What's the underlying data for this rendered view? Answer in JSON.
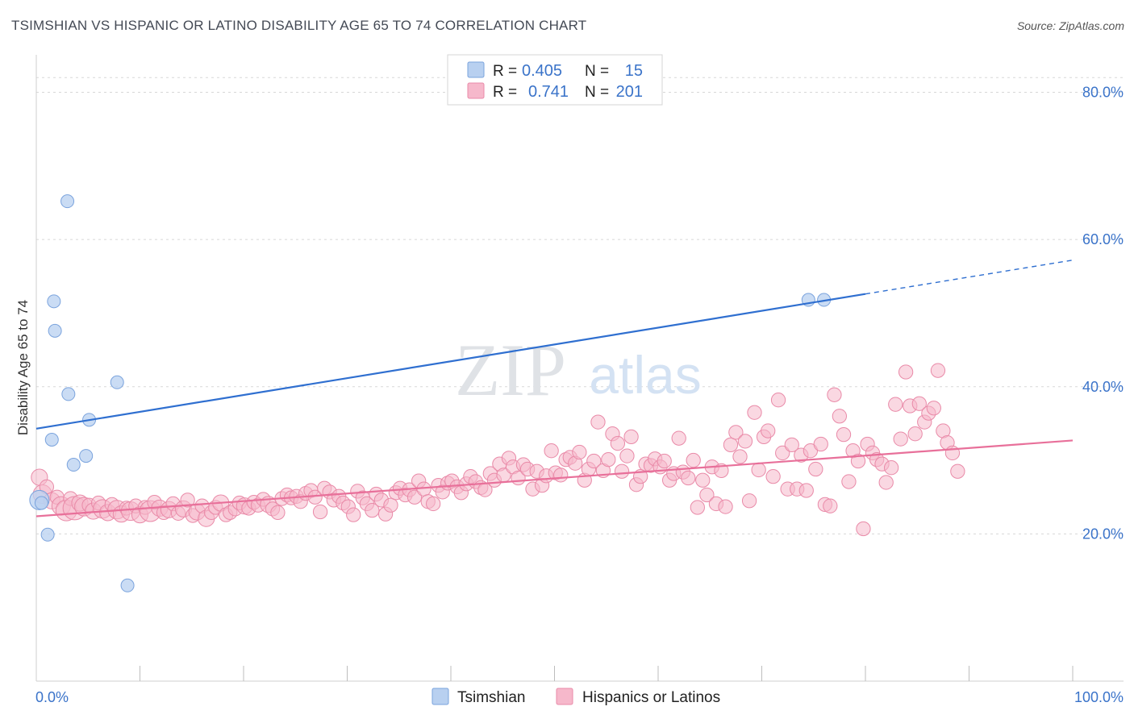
{
  "title": "TSIMSHIAN VS HISPANIC OR LATINO DISABILITY AGE 65 TO 74 CORRELATION CHART",
  "source": "Source: ZipAtlas.com",
  "watermark": {
    "zip": "ZIP",
    "atlas": "atlas"
  },
  "colors": {
    "blue_fill": "#b8d0f0",
    "blue_stroke": "#7aa3dd",
    "blue_line": "#2f6fd0",
    "pink_fill": "#f6b8cb",
    "pink_stroke": "#e98aa8",
    "pink_line": "#e8709a",
    "tick_text": "#3a73c9",
    "grid": "#d8d8d8"
  },
  "legend": {
    "rows": [
      {
        "r_label": "R =",
        "r_value": "0.405",
        "n_label": "N =",
        "n_value": "15"
      },
      {
        "r_label": "R =",
        "r_value": "0.741",
        "n_label": "N =",
        "n_value": "201"
      }
    ]
  },
  "bottom_legend": [
    "Tsimshian",
    "Hispanics or Latinos"
  ],
  "chart_data": {
    "type": "scatter",
    "title": "TSIMSHIAN VS HISPANIC OR LATINO DISABILITY AGE 65 TO 74 CORRELATION CHART",
    "ylabel": "Disability Age 65 to 74",
    "xlabel": "",
    "x_tick_labels": [
      "0.0%",
      "100.0%"
    ],
    "y_tick_labels": [
      "20.0%",
      "40.0%",
      "60.0%",
      "80.0%"
    ],
    "xlim": [
      0,
      100
    ],
    "ylim": [
      0,
      84
    ],
    "grid": true,
    "legend_position": "top-center",
    "series": [
      {
        "name": "Tsimshian",
        "R": 0.405,
        "N": 15,
        "trend": {
          "x0": 0,
          "y0": 34.3,
          "x1": 80,
          "y1": 52.6,
          "dashed_to_x": 100,
          "dashed_to_y": 57.2
        },
        "points": [
          [
            0.3,
            24.6,
            12
          ],
          [
            0.5,
            24.2,
            8
          ],
          [
            1.1,
            19.9,
            8
          ],
          [
            3.0,
            65.2,
            8
          ],
          [
            1.7,
            51.6,
            8
          ],
          [
            1.8,
            47.6,
            8
          ],
          [
            3.1,
            39.0,
            8
          ],
          [
            1.5,
            32.8,
            8
          ],
          [
            5.1,
            35.5,
            8
          ],
          [
            3.6,
            29.4,
            8
          ],
          [
            4.8,
            30.6,
            8
          ],
          [
            7.8,
            40.6,
            8
          ],
          [
            8.8,
            13.0,
            8
          ],
          [
            74.5,
            51.8,
            8
          ],
          [
            76.0,
            51.8,
            8
          ]
        ]
      },
      {
        "name": "Hispanics or Latinos",
        "R": 0.741,
        "N": 201,
        "trend": {
          "x0": 0,
          "y0": 22.4,
          "x1": 100,
          "y1": 32.7
        },
        "points": [
          [
            0.3,
            27.7,
            14
          ],
          [
            0.6,
            25.4,
            16
          ],
          [
            1.0,
            26.4,
            12
          ],
          [
            1.5,
            24.5,
            14
          ],
          [
            2.0,
            25.0,
            12
          ],
          [
            2.4,
            23.8,
            16
          ],
          [
            2.9,
            23.2,
            18
          ],
          [
            3.3,
            24.8,
            12
          ],
          [
            3.7,
            23.5,
            20
          ],
          [
            4.2,
            24.2,
            14
          ],
          [
            4.6,
            23.7,
            16
          ],
          [
            5.1,
            23.9,
            12
          ],
          [
            5.5,
            23.1,
            14
          ],
          [
            6.0,
            24.2,
            12
          ],
          [
            6.4,
            23.4,
            16
          ],
          [
            6.9,
            22.9,
            14
          ],
          [
            7.3,
            24.0,
            12
          ],
          [
            7.8,
            23.3,
            16
          ],
          [
            8.2,
            22.7,
            14
          ],
          [
            8.7,
            23.5,
            12
          ],
          [
            9.1,
            23.1,
            16
          ],
          [
            9.6,
            23.8,
            12
          ],
          [
            10.0,
            22.6,
            14
          ],
          [
            10.5,
            23.6,
            12
          ],
          [
            11.0,
            23.1,
            18
          ],
          [
            11.4,
            24.3,
            12
          ],
          [
            11.9,
            23.5,
            14
          ],
          [
            12.3,
            22.9,
            12
          ],
          [
            12.8,
            23.3,
            14
          ],
          [
            13.2,
            24.1,
            12
          ],
          [
            13.7,
            22.8,
            12
          ],
          [
            14.2,
            23.4,
            14
          ],
          [
            14.6,
            24.6,
            12
          ],
          [
            15.1,
            22.5,
            12
          ],
          [
            15.5,
            23.0,
            14
          ],
          [
            16.0,
            23.8,
            12
          ],
          [
            16.4,
            22.1,
            14
          ],
          [
            16.9,
            22.9,
            12
          ],
          [
            17.3,
            23.6,
            12
          ],
          [
            17.8,
            24.2,
            14
          ],
          [
            18.3,
            22.6,
            12
          ],
          [
            18.7,
            22.9,
            12
          ],
          [
            19.2,
            23.4,
            12
          ],
          [
            19.6,
            24.2,
            12
          ],
          [
            20.1,
            23.8,
            14
          ],
          [
            20.5,
            23.5,
            12
          ],
          [
            21.0,
            24.3,
            12
          ],
          [
            21.4,
            23.9,
            12
          ],
          [
            21.9,
            24.7,
            12
          ],
          [
            22.4,
            24.0,
            14
          ],
          [
            22.8,
            23.4,
            12
          ],
          [
            23.3,
            22.9,
            12
          ],
          [
            23.7,
            24.8,
            12
          ],
          [
            24.2,
            25.3,
            12
          ],
          [
            24.6,
            24.9,
            12
          ],
          [
            25.1,
            25.1,
            12
          ],
          [
            25.5,
            24.4,
            12
          ],
          [
            26.0,
            25.5,
            12
          ],
          [
            26.5,
            25.9,
            12
          ],
          [
            26.9,
            25.0,
            12
          ],
          [
            27.4,
            23.0,
            12
          ],
          [
            27.8,
            26.2,
            12
          ],
          [
            28.3,
            25.7,
            12
          ],
          [
            28.7,
            24.6,
            12
          ],
          [
            29.2,
            25.1,
            12
          ],
          [
            29.6,
            24.2,
            12
          ],
          [
            30.1,
            23.7,
            12
          ],
          [
            30.6,
            22.6,
            12
          ],
          [
            31.0,
            25.8,
            12
          ],
          [
            31.5,
            24.9,
            12
          ],
          [
            31.9,
            24.1,
            12
          ],
          [
            32.4,
            23.2,
            12
          ],
          [
            32.8,
            25.4,
            12
          ],
          [
            33.3,
            24.6,
            12
          ],
          [
            33.7,
            22.7,
            12
          ],
          [
            34.2,
            23.9,
            12
          ],
          [
            34.7,
            25.6,
            12
          ],
          [
            35.1,
            26.2,
            12
          ],
          [
            35.6,
            25.3,
            12
          ],
          [
            36.0,
            26.0,
            12
          ],
          [
            36.5,
            25.0,
            12
          ],
          [
            36.9,
            27.2,
            12
          ],
          [
            37.4,
            26.1,
            12
          ],
          [
            37.8,
            24.4,
            12
          ],
          [
            38.3,
            24.1,
            12
          ],
          [
            38.8,
            26.6,
            12
          ],
          [
            39.2,
            25.7,
            12
          ],
          [
            39.7,
            26.9,
            12
          ],
          [
            40.1,
            27.2,
            12
          ],
          [
            40.6,
            26.4,
            12
          ],
          [
            41.0,
            25.6,
            12
          ],
          [
            41.5,
            26.8,
            12
          ],
          [
            41.9,
            27.8,
            12
          ],
          [
            42.4,
            27.1,
            12
          ],
          [
            42.9,
            26.3,
            12
          ],
          [
            43.3,
            26.0,
            12
          ],
          [
            43.8,
            28.2,
            12
          ],
          [
            44.2,
            27.3,
            12
          ],
          [
            44.7,
            29.5,
            12
          ],
          [
            45.1,
            28.0,
            12
          ],
          [
            45.6,
            30.3,
            12
          ],
          [
            46.0,
            29.1,
            12
          ],
          [
            46.5,
            27.6,
            12
          ],
          [
            47.0,
            29.4,
            12
          ],
          [
            47.4,
            28.8,
            12
          ],
          [
            47.9,
            26.1,
            12
          ],
          [
            48.3,
            28.5,
            12
          ],
          [
            48.8,
            26.6,
            12
          ],
          [
            49.2,
            27.9,
            12
          ],
          [
            49.7,
            31.3,
            12
          ],
          [
            50.1,
            28.3,
            12
          ],
          [
            50.6,
            28.0,
            12
          ],
          [
            51.1,
            30.1,
            12
          ],
          [
            51.5,
            30.4,
            12
          ],
          [
            52.0,
            29.6,
            12
          ],
          [
            52.4,
            31.1,
            12
          ],
          [
            52.9,
            27.3,
            12
          ],
          [
            53.3,
            28.8,
            12
          ],
          [
            53.8,
            29.9,
            12
          ],
          [
            54.2,
            35.2,
            12
          ],
          [
            54.7,
            28.6,
            12
          ],
          [
            55.2,
            30.1,
            12
          ],
          [
            55.6,
            33.6,
            12
          ],
          [
            56.1,
            32.3,
            12
          ],
          [
            56.5,
            28.5,
            12
          ],
          [
            57.0,
            30.6,
            12
          ],
          [
            57.4,
            33.2,
            12
          ],
          [
            57.9,
            26.7,
            12
          ],
          [
            58.3,
            27.8,
            12
          ],
          [
            58.8,
            29.5,
            12
          ],
          [
            59.3,
            29.3,
            12
          ],
          [
            59.7,
            30.2,
            12
          ],
          [
            60.2,
            29.1,
            12
          ],
          [
            60.6,
            29.9,
            12
          ],
          [
            61.1,
            27.3,
            12
          ],
          [
            61.5,
            28.2,
            12
          ],
          [
            62.0,
            33.0,
            12
          ],
          [
            62.4,
            28.4,
            12
          ],
          [
            62.9,
            27.6,
            12
          ],
          [
            63.4,
            30.0,
            12
          ],
          [
            63.8,
            23.6,
            12
          ],
          [
            64.3,
            27.3,
            12
          ],
          [
            64.7,
            25.3,
            12
          ],
          [
            65.2,
            29.1,
            12
          ],
          [
            65.6,
            24.1,
            12
          ],
          [
            66.1,
            28.6,
            12
          ],
          [
            66.5,
            23.7,
            12
          ],
          [
            67.0,
            32.1,
            12
          ],
          [
            67.5,
            33.8,
            12
          ],
          [
            67.9,
            30.5,
            12
          ],
          [
            68.4,
            32.6,
            12
          ],
          [
            68.8,
            24.5,
            12
          ],
          [
            69.3,
            36.5,
            12
          ],
          [
            69.7,
            28.7,
            12
          ],
          [
            70.2,
            33.2,
            12
          ],
          [
            70.6,
            34.0,
            12
          ],
          [
            71.1,
            27.8,
            12
          ],
          [
            71.6,
            38.2,
            12
          ],
          [
            72.0,
            31.0,
            12
          ],
          [
            72.5,
            26.1,
            12
          ],
          [
            72.9,
            32.1,
            12
          ],
          [
            73.4,
            26.1,
            12
          ],
          [
            73.8,
            30.7,
            12
          ],
          [
            74.3,
            25.9,
            12
          ],
          [
            74.7,
            31.3,
            12
          ],
          [
            75.2,
            28.8,
            12
          ],
          [
            75.7,
            32.2,
            12
          ],
          [
            76.1,
            24.0,
            12
          ],
          [
            76.6,
            23.8,
            12
          ],
          [
            77.0,
            38.9,
            12
          ],
          [
            77.5,
            36.0,
            12
          ],
          [
            77.9,
            33.5,
            12
          ],
          [
            78.4,
            27.1,
            12
          ],
          [
            78.8,
            31.3,
            12
          ],
          [
            79.3,
            29.9,
            12
          ],
          [
            79.8,
            20.7,
            12
          ],
          [
            80.2,
            32.2,
            12
          ],
          [
            80.7,
            31.0,
            12
          ],
          [
            81.1,
            30.1,
            12
          ],
          [
            81.6,
            29.5,
            12
          ],
          [
            82.0,
            27.0,
            12
          ],
          [
            82.5,
            29.0,
            12
          ],
          [
            82.9,
            37.6,
            12
          ],
          [
            83.4,
            32.9,
            12
          ],
          [
            83.9,
            42.0,
            12
          ],
          [
            84.3,
            37.4,
            12
          ],
          [
            84.8,
            33.6,
            12
          ],
          [
            85.2,
            37.7,
            12
          ],
          [
            85.7,
            35.2,
            12
          ],
          [
            86.1,
            36.4,
            12
          ],
          [
            86.6,
            37.1,
            12
          ],
          [
            87.0,
            42.2,
            12
          ],
          [
            87.5,
            34.0,
            12
          ],
          [
            87.9,
            32.4,
            12
          ],
          [
            88.4,
            31.0,
            12
          ],
          [
            88.9,
            28.5,
            12
          ]
        ]
      }
    ]
  }
}
